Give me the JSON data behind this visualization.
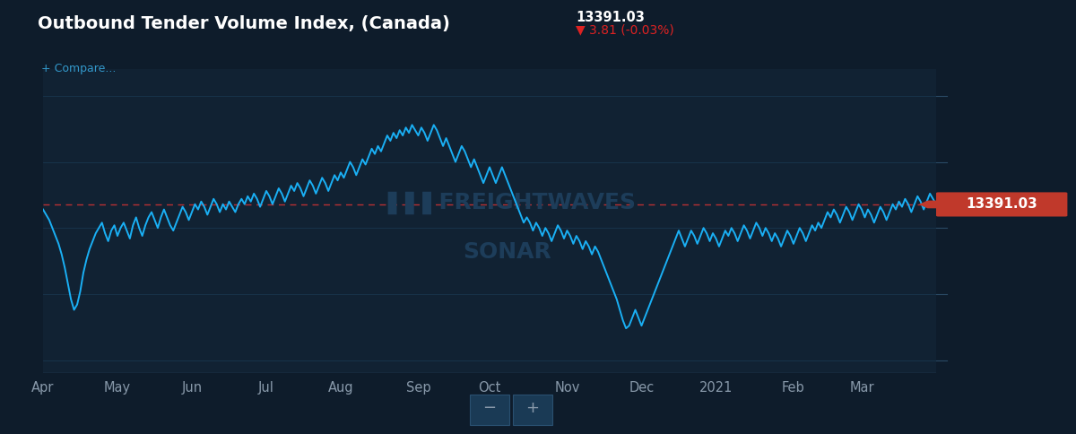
{
  "title": "Outbound Tender Volume Index, (Canada)",
  "subtitle_value": "13391.03",
  "subtitle_change": "▼ 3.81 (-0.03%)",
  "compare_label": "+ Compare...",
  "watermark_line1": "███ FREIGHTWAVES",
  "watermark_line2": "SONAR",
  "bg_color": "#0e1c2b",
  "plot_bg_color": "#112233",
  "line_color": "#1ab0f5",
  "dashed_line_color": "#cc3333",
  "dashed_line_value": 13391.03,
  "last_value": 13391.03,
  "last_value_bg": "#c0392b",
  "ylim": [
    7000,
    18500
  ],
  "yticks": [
    7500.0,
    10000.0,
    12500.0,
    15000.0,
    17500.0
  ],
  "x_labels": [
    "Apr",
    "May",
    "Jun",
    "Jul",
    "Aug",
    "Sep",
    "Oct",
    "Nov",
    "Dec",
    "2021",
    "Feb",
    "Mar"
  ],
  "series": [
    13200,
    13000,
    12800,
    12500,
    12200,
    11900,
    11500,
    11000,
    10400,
    9800,
    9400,
    9600,
    10100,
    10800,
    11300,
    11700,
    12000,
    12300,
    12500,
    12700,
    12300,
    12000,
    12400,
    12600,
    12200,
    12500,
    12700,
    12400,
    12100,
    12600,
    12900,
    12500,
    12200,
    12600,
    12900,
    13100,
    12800,
    12500,
    12900,
    13200,
    12900,
    12600,
    12400,
    12700,
    13000,
    13300,
    13100,
    12800,
    13100,
    13400,
    13200,
    13500,
    13300,
    13000,
    13300,
    13600,
    13400,
    13100,
    13400,
    13200,
    13500,
    13300,
    13100,
    13400,
    13600,
    13400,
    13700,
    13500,
    13800,
    13600,
    13300,
    13600,
    13900,
    13700,
    13400,
    13700,
    14000,
    13800,
    13500,
    13800,
    14100,
    13900,
    14200,
    14000,
    13700,
    14000,
    14300,
    14100,
    13800,
    14100,
    14400,
    14200,
    13900,
    14200,
    14500,
    14300,
    14600,
    14400,
    14700,
    15000,
    14800,
    14500,
    14800,
    15100,
    14900,
    15200,
    15500,
    15300,
    15600,
    15400,
    15700,
    16000,
    15800,
    16100,
    15900,
    16200,
    16000,
    16300,
    16100,
    16400,
    16200,
    16000,
    16300,
    16100,
    15800,
    16100,
    16400,
    16200,
    15900,
    15600,
    15900,
    15600,
    15300,
    15000,
    15300,
    15600,
    15400,
    15100,
    14800,
    15100,
    14800,
    14500,
    14200,
    14500,
    14800,
    14500,
    14200,
    14500,
    14800,
    14500,
    14200,
    13900,
    13600,
    13300,
    13000,
    12700,
    12900,
    12700,
    12400,
    12700,
    12500,
    12200,
    12500,
    12300,
    12000,
    12300,
    12600,
    12400,
    12100,
    12400,
    12200,
    11900,
    12200,
    12000,
    11700,
    12000,
    11800,
    11500,
    11800,
    11600,
    11300,
    11000,
    10700,
    10400,
    10100,
    9800,
    9400,
    9000,
    8700,
    8800,
    9100,
    9400,
    9100,
    8800,
    9100,
    9400,
    9700,
    10000,
    10300,
    10600,
    10900,
    11200,
    11500,
    11800,
    12100,
    12400,
    12100,
    11800,
    12100,
    12400,
    12200,
    11900,
    12200,
    12500,
    12300,
    12000,
    12300,
    12100,
    11800,
    12100,
    12400,
    12200,
    12500,
    12300,
    12000,
    12300,
    12600,
    12400,
    12100,
    12400,
    12700,
    12500,
    12200,
    12500,
    12300,
    12000,
    12300,
    12100,
    11800,
    12100,
    12400,
    12200,
    11900,
    12200,
    12500,
    12300,
    12000,
    12300,
    12600,
    12400,
    12700,
    12500,
    12800,
    13100,
    12900,
    13200,
    13000,
    12700,
    13000,
    13300,
    13100,
    12800,
    13100,
    13400,
    13200,
    12900,
    13200,
    13000,
    12700,
    13000,
    13300,
    13100,
    12800,
    13100,
    13400,
    13200,
    13500,
    13300,
    13600,
    13400,
    13100,
    13400,
    13700,
    13500,
    13200,
    13500,
    13800,
    13600,
    13391
  ]
}
